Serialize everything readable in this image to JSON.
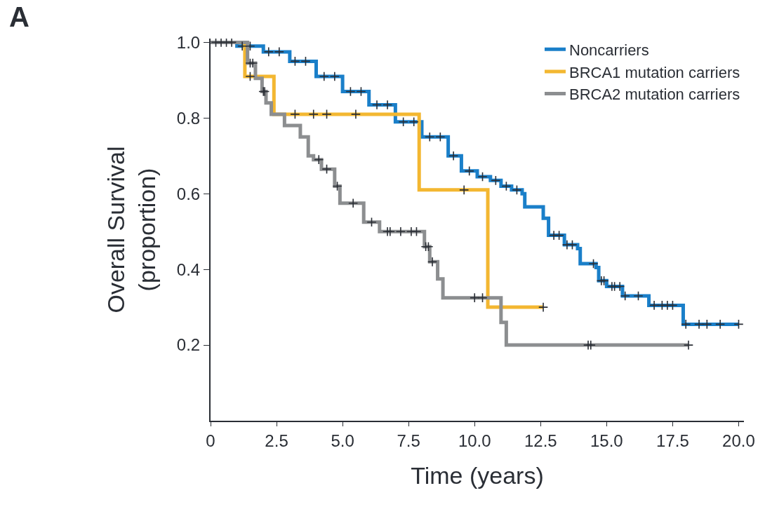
{
  "chart_data": {
    "type": "step",
    "xlabel": "Time (years)",
    "ylabel": "Overall Survival\n(proportion)",
    "annotations": [
      "A"
    ],
    "xlim": [
      0,
      20.2
    ],
    "ylim": [
      0,
      1.01
    ],
    "xticks": [
      0,
      2.5,
      {
        "value": 5,
        "label": "5.0"
      },
      7.5,
      {
        "value": 10,
        "label": "10.0"
      },
      12.5,
      {
        "value": 15,
        "label": "15.0"
      },
      17.5,
      {
        "value": 20,
        "label": "20.0"
      }
    ],
    "yticks": [
      0.2,
      0.4,
      0.6,
      0.8,
      {
        "value": 1,
        "label": "1.0"
      }
    ],
    "legend": "top right",
    "line_style": "solid",
    "marker": "none",
    "series": [
      {
        "name": "Noncarriers",
        "color": "#1a7fc9",
        "x": [
          0,
          1.0,
          2.0,
          3.0,
          4.0,
          5.0,
          6.0,
          7.0,
          8.0,
          9.0,
          9.5,
          10.1,
          10.6,
          11.0,
          11.4,
          11.8,
          11.9,
          12.6,
          12.8,
          13.4,
          13.9,
          14.0,
          14.6,
          14.7,
          15.0,
          15.6,
          16.6,
          17.9,
          20.0
        ],
        "values": [
          1.0,
          0.99,
          0.975,
          0.95,
          0.91,
          0.87,
          0.835,
          0.79,
          0.75,
          0.7,
          0.66,
          0.645,
          0.635,
          0.62,
          0.61,
          0.6,
          0.565,
          0.535,
          0.49,
          0.465,
          0.455,
          0.415,
          0.405,
          0.37,
          0.355,
          0.33,
          0.305,
          0.255,
          0.255
        ]
      },
      {
        "name": "BRCA1 mutation carriers",
        "color": "#f3b731",
        "x": [
          0,
          1.3,
          2.4,
          7.9,
          10.5,
          12.6
        ],
        "values": [
          1.0,
          0.91,
          0.81,
          0.61,
          0.3,
          0.3
        ]
      },
      {
        "name": "BRCA2 mutation carriers",
        "color": "#8c8e90",
        "x": [
          0,
          1.4,
          1.7,
          1.95,
          2.1,
          2.3,
          2.8,
          3.4,
          3.7,
          3.9,
          4.2,
          4.7,
          4.9,
          5.8,
          6.4,
          8.1,
          8.3,
          8.6,
          8.8,
          11.0,
          11.2,
          18.1
        ],
        "values": [
          1.0,
          0.945,
          0.905,
          0.87,
          0.84,
          0.81,
          0.78,
          0.75,
          0.7,
          0.69,
          0.665,
          0.62,
          0.575,
          0.525,
          0.5,
          0.46,
          0.42,
          0.375,
          0.325,
          0.26,
          0.2,
          0.2
        ]
      },
      {
        "type": "scatter",
        "marker": "cross",
        "color": "#2a2e35",
        "x": [
          0.2,
          0.4,
          0.6,
          0.8,
          1.2,
          1.5,
          2.2,
          2.6,
          3.2,
          3.6,
          4.3,
          4.7,
          5.3,
          5.7,
          6.3,
          6.7,
          7.3,
          7.7,
          8.3,
          8.7,
          9.2,
          9.8,
          10.3,
          10.8,
          11.2,
          11.6,
          13.0,
          13.2,
          13.5,
          13.7,
          14.5,
          14.8,
          14.9,
          15.2,
          15.3,
          15.5,
          15.7,
          16.2,
          16.8,
          17.1,
          17.3,
          17.5,
          18.0,
          18.5,
          18.8,
          19.3,
          20.0,
          1.5,
          3.2,
          3.9,
          4.4,
          5.5,
          9.6,
          12.6,
          1.5,
          1.6,
          2.0,
          2.05,
          4.1,
          4.4,
          4.8,
          5.4,
          6.1,
          6.7,
          6.8,
          7.2,
          7.6,
          7.8,
          8.15,
          8.25,
          8.4,
          10.0,
          10.3,
          14.3,
          14.4,
          18.1
        ],
        "values": [
          1.0,
          1.0,
          1.0,
          1.0,
          0.99,
          0.99,
          0.975,
          0.975,
          0.95,
          0.95,
          0.91,
          0.91,
          0.87,
          0.87,
          0.835,
          0.835,
          0.79,
          0.79,
          0.75,
          0.75,
          0.7,
          0.66,
          0.645,
          0.635,
          0.62,
          0.61,
          0.49,
          0.49,
          0.465,
          0.465,
          0.415,
          0.37,
          0.37,
          0.355,
          0.355,
          0.355,
          0.33,
          0.33,
          0.305,
          0.305,
          0.305,
          0.305,
          0.255,
          0.255,
          0.255,
          0.255,
          0.255,
          0.91,
          0.81,
          0.81,
          0.81,
          0.81,
          0.61,
          0.3,
          0.945,
          0.945,
          0.87,
          0.87,
          0.69,
          0.665,
          0.62,
          0.575,
          0.525,
          0.5,
          0.5,
          0.5,
          0.5,
          0.5,
          0.46,
          0.46,
          0.42,
          0.325,
          0.325,
          0.2,
          0.2,
          0.2
        ]
      }
    ]
  }
}
